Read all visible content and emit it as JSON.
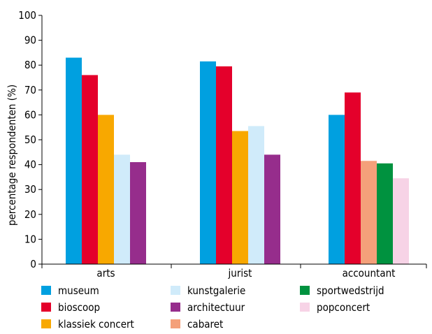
{
  "chart_data": {
    "type": "bar",
    "title": "",
    "xlabel": "",
    "ylabel": "percentage respondenten (%)",
    "ylim": [
      0,
      100
    ],
    "yticks": [
      0,
      10,
      20,
      30,
      40,
      50,
      60,
      70,
      80,
      90,
      100
    ],
    "grid": false,
    "legend_position": "bottom",
    "groups": [
      {
        "category": "arts",
        "bars": [
          {
            "series": "museum",
            "value": 83
          },
          {
            "series": "bioscoop",
            "value": 76
          },
          {
            "series": "klassiek concert",
            "value": 60
          },
          {
            "series": "kunstgalerie",
            "value": 44
          },
          {
            "series": "architectuur",
            "value": 41
          }
        ]
      },
      {
        "category": "jurist",
        "bars": [
          {
            "series": "museum",
            "value": 81.5
          },
          {
            "series": "bioscoop",
            "value": 79.5
          },
          {
            "series": "klassiek concert",
            "value": 53.5
          },
          {
            "series": "kunstgalerie",
            "value": 55.5
          },
          {
            "series": "architectuur",
            "value": 44
          }
        ]
      },
      {
        "category": "accountant",
        "bars": [
          {
            "series": "museum",
            "value": 60
          },
          {
            "series": "bioscoop",
            "value": 69
          },
          {
            "series": "cabaret",
            "value": 41.5
          },
          {
            "series": "sportwedstrijd",
            "value": 40.5
          },
          {
            "series": "popconcert",
            "value": 34.5
          }
        ]
      }
    ],
    "series": [
      {
        "name": "museum",
        "color": "#00A0E0"
      },
      {
        "name": "bioscoop",
        "color": "#E4002B"
      },
      {
        "name": "klassiek concert",
        "color": "#F8A800"
      },
      {
        "name": "kunstgalerie",
        "color": "#D0EBFA"
      },
      {
        "name": "architectuur",
        "color": "#962D8C"
      },
      {
        "name": "cabaret",
        "color": "#F4A07A"
      },
      {
        "name": "sportwedstrijd",
        "color": "#00923F"
      },
      {
        "name": "popconcert",
        "color": "#F7D3E6"
      }
    ],
    "legend_columns": [
      [
        "museum",
        "bioscoop",
        "klassiek concert"
      ],
      [
        "kunstgalerie",
        "architectuur",
        "cabaret"
      ],
      [
        "sportwedstrijd",
        "popconcert"
      ]
    ]
  }
}
